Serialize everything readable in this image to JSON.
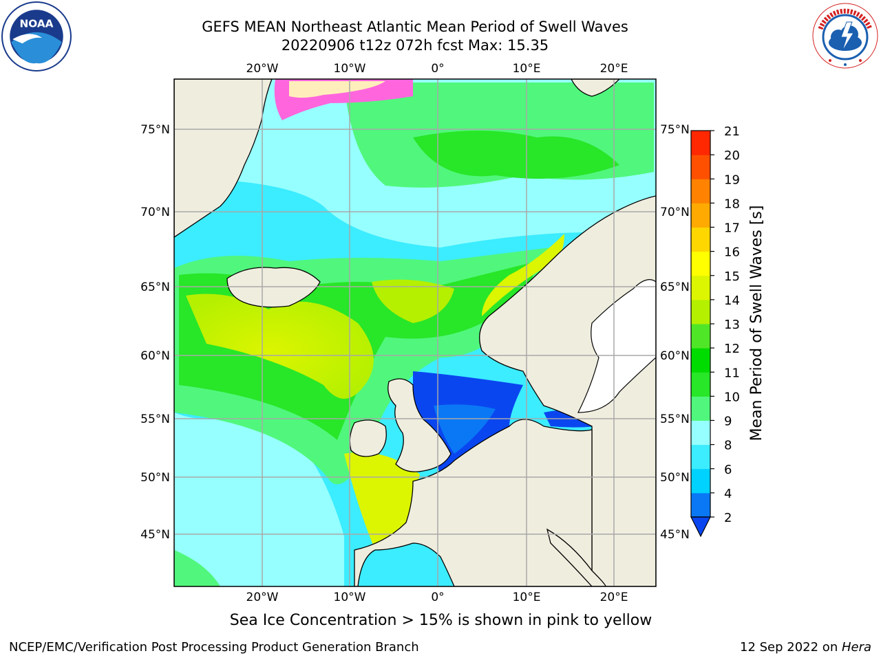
{
  "header": {
    "title_line1": "GEFS MEAN Northeast Atlantic Mean Period of Swell Waves",
    "title_line2": "20220906 t12z 072h fcst   Max: 15.35"
  },
  "logos": {
    "left": "noaa-logo",
    "right": "nws-logo"
  },
  "map": {
    "lon_labels": [
      "20°W",
      "10°W",
      "0°",
      "10°E",
      "20°E"
    ],
    "lat_labels": [
      "75°N",
      "70°N",
      "65°N",
      "60°N",
      "55°N",
      "50°N",
      "45°N"
    ],
    "lon_range": [
      -30,
      25
    ],
    "lat_range": [
      41,
      78
    ]
  },
  "colorbar": {
    "label": "Mean Period of Swell Waves [s]",
    "ticks": [
      "2",
      "4",
      "6",
      "8",
      "9",
      "10",
      "11",
      "12",
      "13",
      "14",
      "15",
      "16",
      "17",
      "18",
      "19",
      "20",
      "21"
    ],
    "colors": [
      "#0a46f0",
      "#0a78f5",
      "#00d2ff",
      "#3cecff",
      "#96ffff",
      "#50f77c",
      "#28e628",
      "#00dc00",
      "#50e628",
      "#b4f000",
      "#dcf500",
      "#ffff00",
      "#ffd700",
      "#ffaa00",
      "#ff8200",
      "#ff5000",
      "#ff2800",
      "#ff0000"
    ]
  },
  "note": "Sea Ice Concentration > 15% is shown in pink to yellow",
  "footer": {
    "left": "NCEP/EMC/Verification Post Processing Product Generation Branch",
    "date": "12 Sep 2022 on ",
    "host": "Hera"
  }
}
